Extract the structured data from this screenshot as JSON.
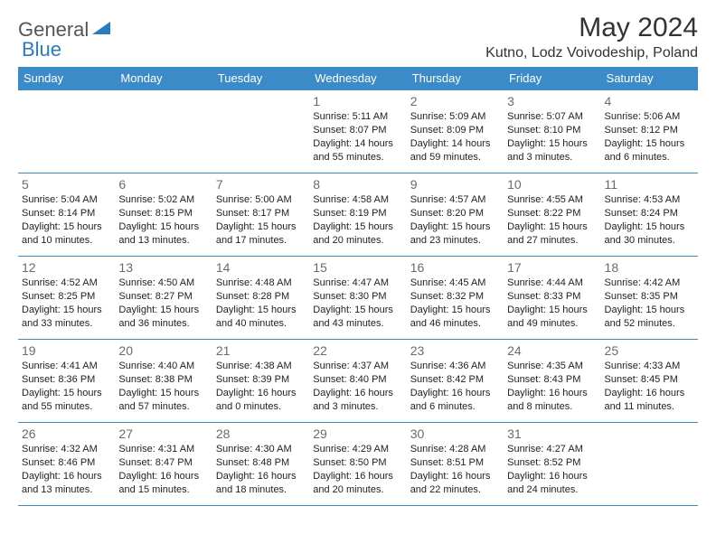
{
  "logo": {
    "general": "General",
    "blue": "Blue"
  },
  "title": "May 2024",
  "location": "Kutno, Lodz Voivodeship, Poland",
  "colors": {
    "header_bg": "#3b8bc9",
    "header_text": "#ffffff",
    "border": "#3b8bc9",
    "daynum": "#6b6b6b",
    "text": "#222222",
    "logo_general": "#555555",
    "logo_blue": "#2b7bbf"
  },
  "weekdays": [
    "Sunday",
    "Monday",
    "Tuesday",
    "Wednesday",
    "Thursday",
    "Friday",
    "Saturday"
  ],
  "weeks": [
    [
      null,
      null,
      null,
      {
        "n": "1",
        "sr": "5:11 AM",
        "ss": "8:07 PM",
        "dl": "14 hours and 55 minutes."
      },
      {
        "n": "2",
        "sr": "5:09 AM",
        "ss": "8:09 PM",
        "dl": "14 hours and 59 minutes."
      },
      {
        "n": "3",
        "sr": "5:07 AM",
        "ss": "8:10 PM",
        "dl": "15 hours and 3 minutes."
      },
      {
        "n": "4",
        "sr": "5:06 AM",
        "ss": "8:12 PM",
        "dl": "15 hours and 6 minutes."
      }
    ],
    [
      {
        "n": "5",
        "sr": "5:04 AM",
        "ss": "8:14 PM",
        "dl": "15 hours and 10 minutes."
      },
      {
        "n": "6",
        "sr": "5:02 AM",
        "ss": "8:15 PM",
        "dl": "15 hours and 13 minutes."
      },
      {
        "n": "7",
        "sr": "5:00 AM",
        "ss": "8:17 PM",
        "dl": "15 hours and 17 minutes."
      },
      {
        "n": "8",
        "sr": "4:58 AM",
        "ss": "8:19 PM",
        "dl": "15 hours and 20 minutes."
      },
      {
        "n": "9",
        "sr": "4:57 AM",
        "ss": "8:20 PM",
        "dl": "15 hours and 23 minutes."
      },
      {
        "n": "10",
        "sr": "4:55 AM",
        "ss": "8:22 PM",
        "dl": "15 hours and 27 minutes."
      },
      {
        "n": "11",
        "sr": "4:53 AM",
        "ss": "8:24 PM",
        "dl": "15 hours and 30 minutes."
      }
    ],
    [
      {
        "n": "12",
        "sr": "4:52 AM",
        "ss": "8:25 PM",
        "dl": "15 hours and 33 minutes."
      },
      {
        "n": "13",
        "sr": "4:50 AM",
        "ss": "8:27 PM",
        "dl": "15 hours and 36 minutes."
      },
      {
        "n": "14",
        "sr": "4:48 AM",
        "ss": "8:28 PM",
        "dl": "15 hours and 40 minutes."
      },
      {
        "n": "15",
        "sr": "4:47 AM",
        "ss": "8:30 PM",
        "dl": "15 hours and 43 minutes."
      },
      {
        "n": "16",
        "sr": "4:45 AM",
        "ss": "8:32 PM",
        "dl": "15 hours and 46 minutes."
      },
      {
        "n": "17",
        "sr": "4:44 AM",
        "ss": "8:33 PM",
        "dl": "15 hours and 49 minutes."
      },
      {
        "n": "18",
        "sr": "4:42 AM",
        "ss": "8:35 PM",
        "dl": "15 hours and 52 minutes."
      }
    ],
    [
      {
        "n": "19",
        "sr": "4:41 AM",
        "ss": "8:36 PM",
        "dl": "15 hours and 55 minutes."
      },
      {
        "n": "20",
        "sr": "4:40 AM",
        "ss": "8:38 PM",
        "dl": "15 hours and 57 minutes."
      },
      {
        "n": "21",
        "sr": "4:38 AM",
        "ss": "8:39 PM",
        "dl": "16 hours and 0 minutes."
      },
      {
        "n": "22",
        "sr": "4:37 AM",
        "ss": "8:40 PM",
        "dl": "16 hours and 3 minutes."
      },
      {
        "n": "23",
        "sr": "4:36 AM",
        "ss": "8:42 PM",
        "dl": "16 hours and 6 minutes."
      },
      {
        "n": "24",
        "sr": "4:35 AM",
        "ss": "8:43 PM",
        "dl": "16 hours and 8 minutes."
      },
      {
        "n": "25",
        "sr": "4:33 AM",
        "ss": "8:45 PM",
        "dl": "16 hours and 11 minutes."
      }
    ],
    [
      {
        "n": "26",
        "sr": "4:32 AM",
        "ss": "8:46 PM",
        "dl": "16 hours and 13 minutes."
      },
      {
        "n": "27",
        "sr": "4:31 AM",
        "ss": "8:47 PM",
        "dl": "16 hours and 15 minutes."
      },
      {
        "n": "28",
        "sr": "4:30 AM",
        "ss": "8:48 PM",
        "dl": "16 hours and 18 minutes."
      },
      {
        "n": "29",
        "sr": "4:29 AM",
        "ss": "8:50 PM",
        "dl": "16 hours and 20 minutes."
      },
      {
        "n": "30",
        "sr": "4:28 AM",
        "ss": "8:51 PM",
        "dl": "16 hours and 22 minutes."
      },
      {
        "n": "31",
        "sr": "4:27 AM",
        "ss": "8:52 PM",
        "dl": "16 hours and 24 minutes."
      },
      null
    ]
  ]
}
